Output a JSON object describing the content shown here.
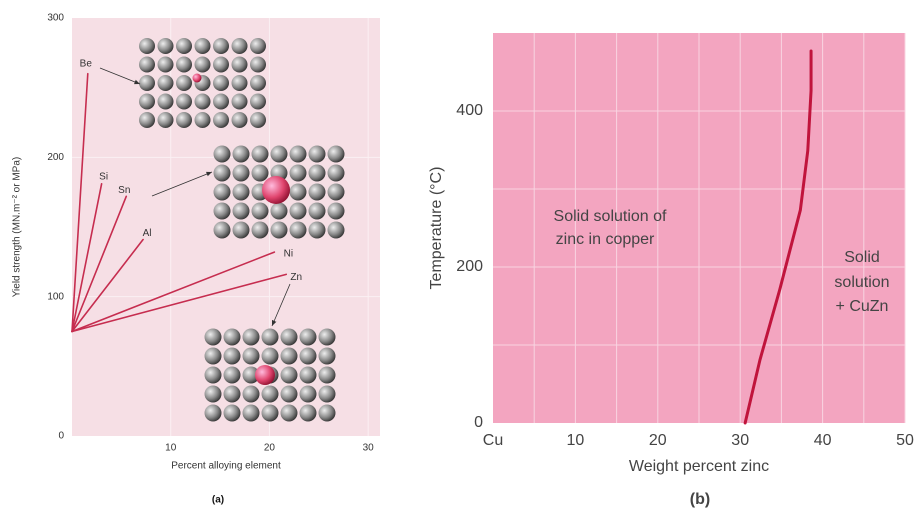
{
  "chart_data": [
    {
      "type": "line",
      "x_label": "Percent alloying element",
      "y_label": "Yield strength (MN.m⁻² or MPa)",
      "caption": "(a)",
      "xlim": [
        0,
        31.2
      ],
      "ylim": [
        0,
        300
      ],
      "xticks": [
        10,
        20,
        30
      ],
      "yticks": [
        0,
        100,
        200,
        300
      ],
      "grid": true,
      "background": "#f6dfe5",
      "series": [
        {
          "name": "Be",
          "color": "#c62d4f",
          "x": [
            0,
            1.6
          ],
          "values": [
            75,
            260
          ]
        },
        {
          "name": "Si",
          "color": "#c62d4f",
          "x": [
            0,
            3.0
          ],
          "values": [
            75,
            181
          ]
        },
        {
          "name": "Sn",
          "color": "#c62d4f",
          "x": [
            0,
            5.5
          ],
          "values": [
            75,
            172
          ]
        },
        {
          "name": "Al",
          "color": "#c62d4f",
          "x": [
            0,
            7.2
          ],
          "values": [
            75,
            141
          ]
        },
        {
          "name": "Ni",
          "color": "#c62d4f",
          "x": [
            0,
            20.5
          ],
          "values": [
            75,
            132
          ]
        },
        {
          "name": "Zn",
          "color": "#c62d4f",
          "x": [
            0,
            21.7
          ],
          "values": [
            75,
            116
          ]
        }
      ]
    },
    {
      "type": "line",
      "x_label": "Weight percent zinc",
      "y_label": "Temperature (°C)",
      "caption": "(b)",
      "xlim": [
        0,
        50
      ],
      "ylim": [
        0,
        500
      ],
      "xticks": [
        {
          "value": 0,
          "label": "Cu"
        },
        10,
        20,
        30,
        40,
        50
      ],
      "yticks": [
        0,
        200,
        400
      ],
      "minor_xticks": [
        5,
        15,
        25,
        35,
        45
      ],
      "minor_yticks": [
        100,
        300
      ],
      "grid": true,
      "background": "#f3a5c0",
      "annotations": [
        "Solid solution of",
        "zinc in copper",
        "Solid",
        "solution",
        "+ CuZn"
      ],
      "series": [
        {
          "color": "#c0143c",
          "x": [
            30.6,
            32.4,
            34.8,
            37.3,
            38.2,
            38.6,
            38.6
          ],
          "values": [
            0,
            81,
            171,
            273,
            349,
            426,
            477
          ]
        }
      ]
    }
  ]
}
